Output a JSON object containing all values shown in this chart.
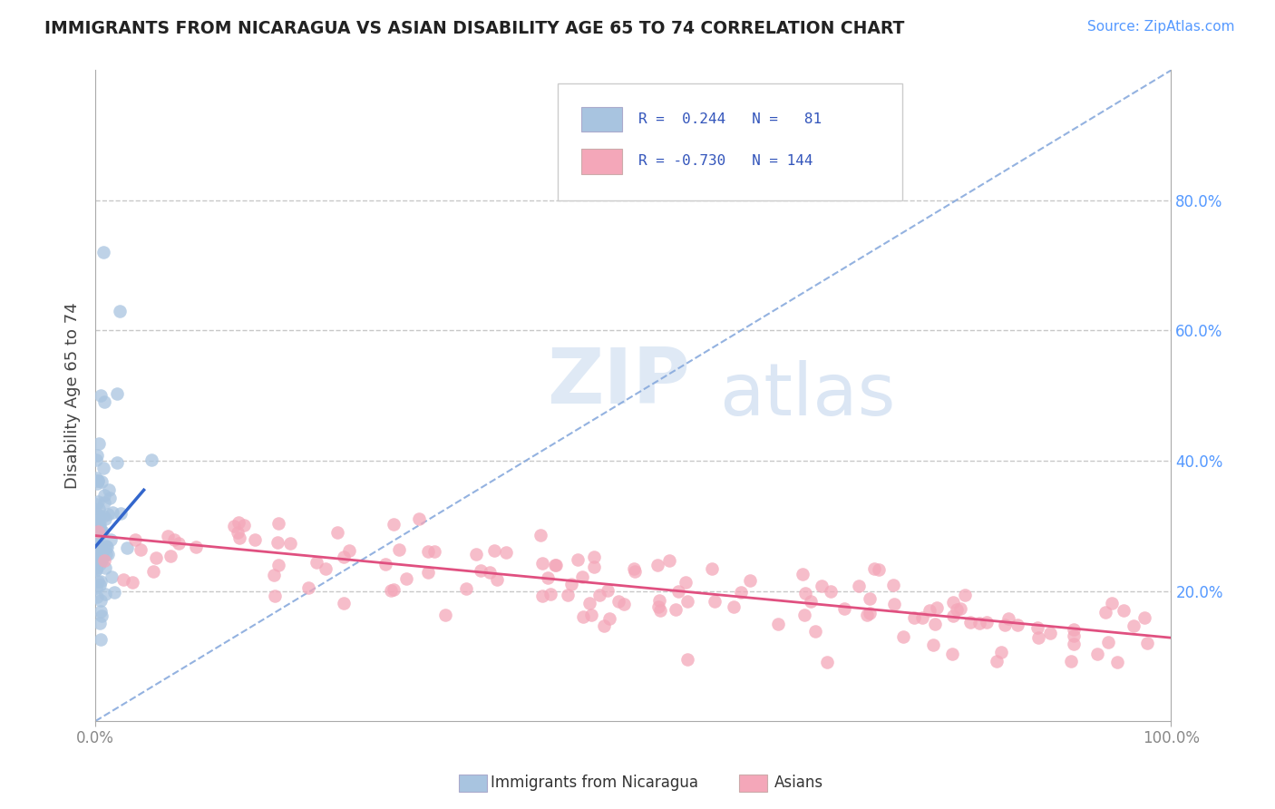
{
  "title": "IMMIGRANTS FROM NICARAGUA VS ASIAN DISABILITY AGE 65 TO 74 CORRELATION CHART",
  "source": "Source: ZipAtlas.com",
  "ylabel": "Disability Age 65 to 74",
  "xlim": [
    0.0,
    1.0
  ],
  "ylim": [
    0.0,
    1.0
  ],
  "y_ticks_right": [
    0.2,
    0.4,
    0.6,
    0.8
  ],
  "y_tick_labels_right": [
    "20.0%",
    "40.0%",
    "60.0%",
    "80.0%"
  ],
  "color_blue": "#a8c4e0",
  "color_pink": "#f4a7b9",
  "line_blue": "#3366cc",
  "line_pink": "#e05080",
  "ref_line_color": "#88aadd",
  "legend_text_color": "#3355bb",
  "watermark_color": "#ccddf0",
  "background_color": "#ffffff",
  "grid_color": "#bbbbbb",
  "title_color": "#222222",
  "source_color": "#5599ff",
  "axis_color": "#aaaaaa",
  "tick_color": "#888888",
  "right_tick_color": "#5599ff"
}
